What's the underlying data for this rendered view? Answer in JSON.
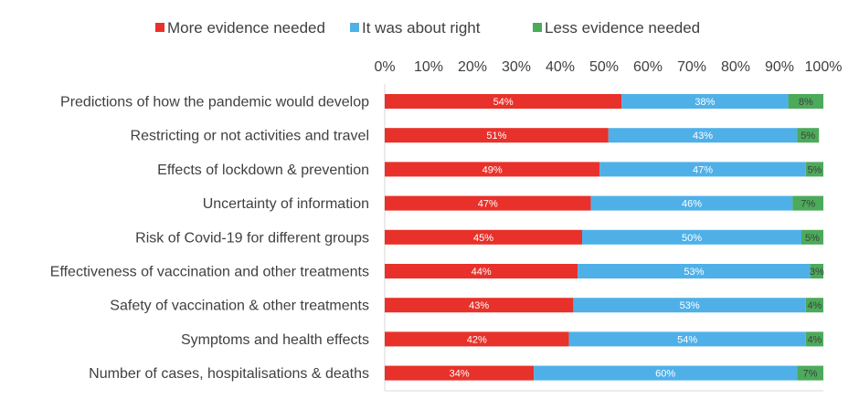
{
  "chart_data": {
    "type": "bar",
    "orientation": "horizontal",
    "stacked": true,
    "normalized_100": true,
    "legend_position": "top",
    "grid": false,
    "xlim": [
      0,
      100
    ],
    "x_ticks": [
      "0%",
      "10%",
      "20%",
      "30%",
      "40%",
      "50%",
      "60%",
      "70%",
      "80%",
      "90%",
      "100%"
    ],
    "categories": [
      "Predictions of how the pandemic would develop",
      "Restricting or not activities and travel",
      "Effects of lockdown & prevention",
      "Uncertainty of information",
      "Risk of Covid-19 for different groups",
      "Effectiveness of vaccination and other treatments",
      "Safety of vaccination & other treatments",
      "Symptoms and health effects",
      "Number of cases, hospitalisations & deaths"
    ],
    "series": [
      {
        "name": "More evidence needed",
        "color": "#e8312a",
        "values": [
          54,
          51,
          49,
          47,
          45,
          44,
          43,
          42,
          34
        ],
        "labels": [
          "54%",
          "51%",
          "49%",
          "47%",
          "45%",
          "44%",
          "43%",
          "42%",
          "34%"
        ]
      },
      {
        "name": "It was about right",
        "color": "#4fb0e8",
        "values": [
          38,
          43,
          47,
          46,
          50,
          53,
          53,
          54,
          60
        ],
        "labels": [
          "38%",
          "43%",
          "47%",
          "46%",
          "50%",
          "53%",
          "53%",
          "54%",
          "60%"
        ]
      },
      {
        "name": "Less evidence needed",
        "color": "#4caa5b",
        "values": [
          8,
          5,
          5,
          7,
          5,
          3,
          4,
          4,
          7
        ],
        "labels": [
          "8%",
          "5%",
          "5%",
          "7%",
          "5%",
          "3%",
          "4%",
          "4%",
          "7%"
        ]
      }
    ]
  }
}
